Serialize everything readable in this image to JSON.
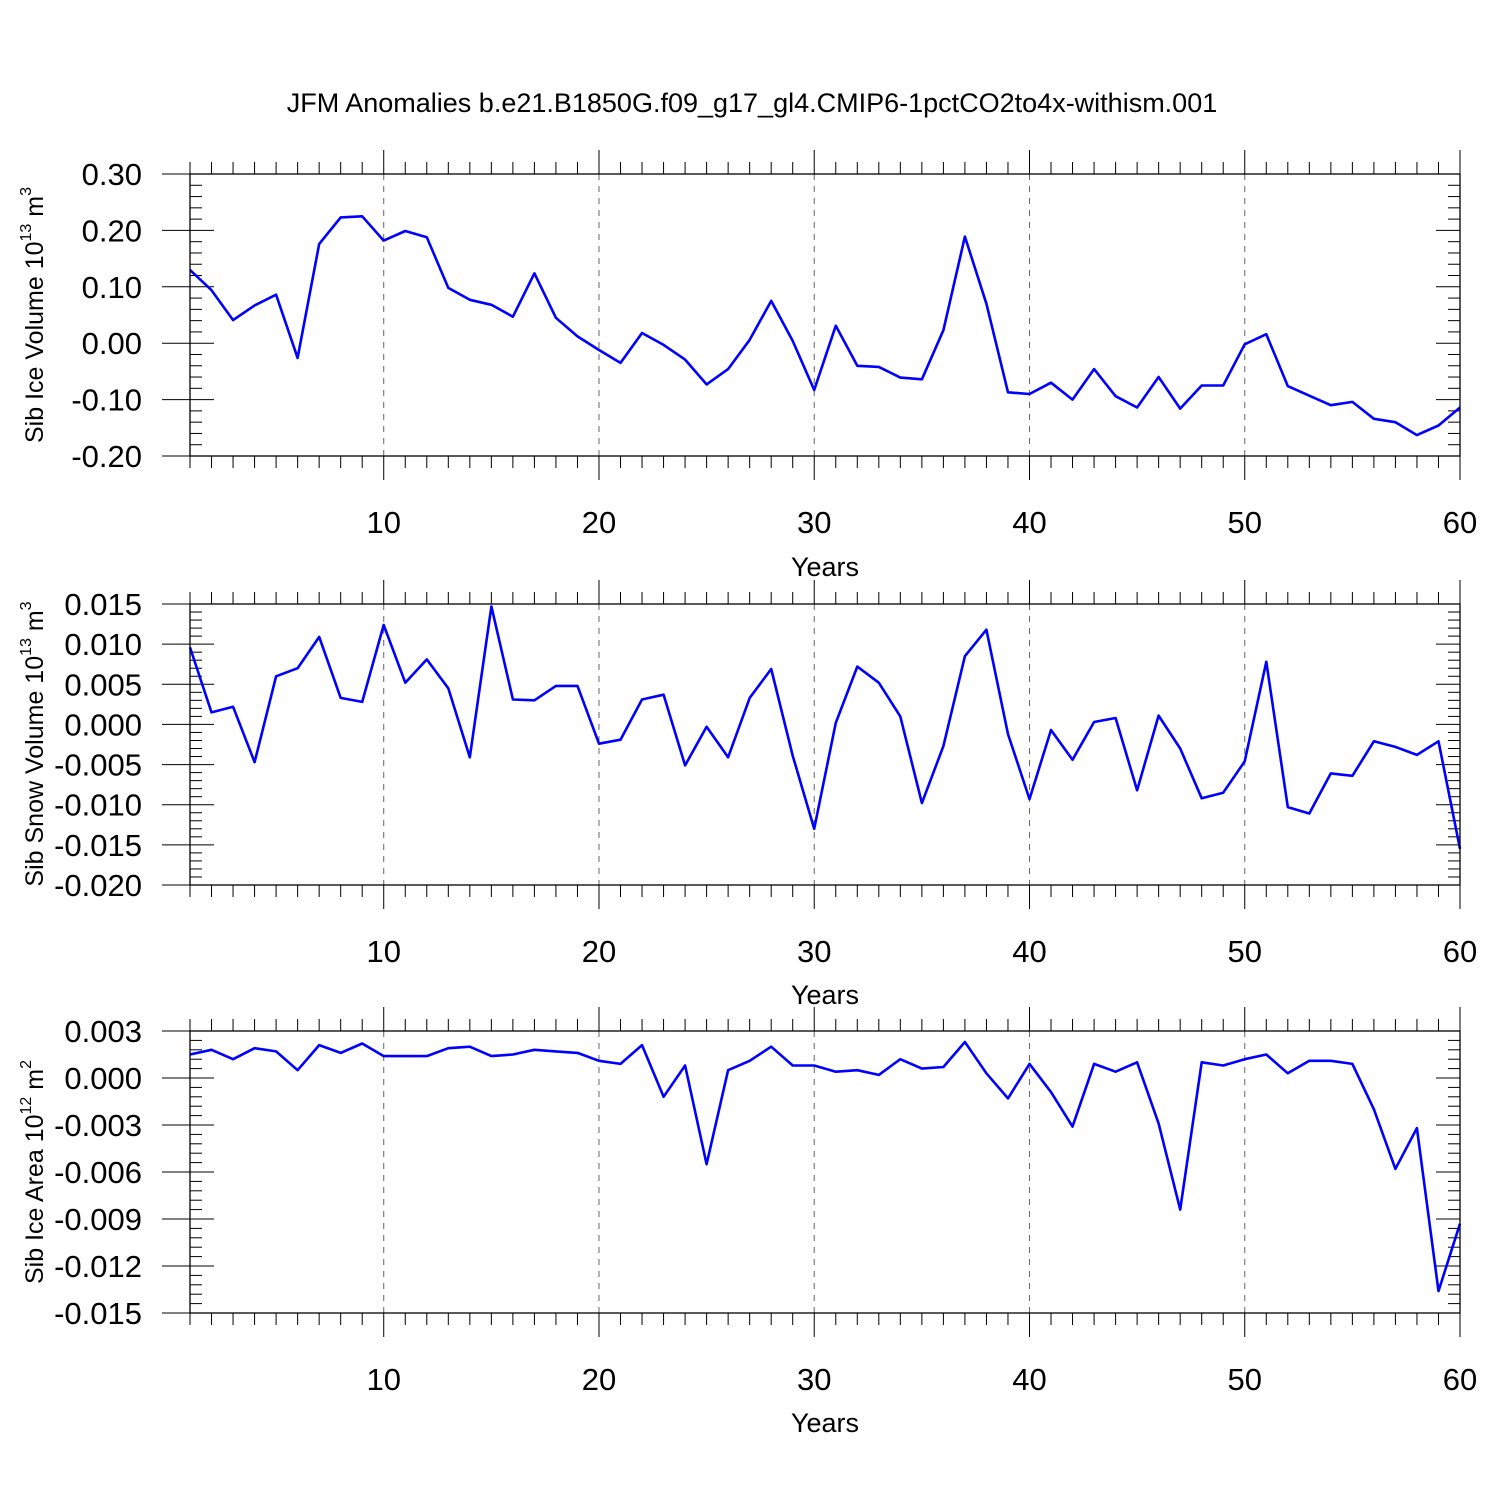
{
  "title": "JFM Anomalies b.e21.B1850G.f09_g17_gl4.CMIP6-1pctCO2to4x-withism.001",
  "line_color": "#0000ff",
  "chart_data": [
    {
      "type": "line",
      "title": "",
      "xlabel": "Years",
      "ylabel_main": "Sib Ice Volume 10",
      "ylabel_exp": "13",
      "ylabel_unit": " m",
      "ylabel_unit_exp": "3",
      "xlim": [
        1,
        60
      ],
      "ylim": [
        -0.2,
        0.3
      ],
      "xticks": [
        10,
        20,
        30,
        40,
        50,
        60
      ],
      "yticks": [
        -0.2,
        -0.1,
        0.0,
        0.1,
        0.2,
        0.3
      ],
      "ytick_labels": [
        "-0.20",
        "-0.10",
        "0.00",
        "0.10",
        "0.20",
        "0.30"
      ],
      "x": [
        1,
        2,
        3,
        4,
        5,
        6,
        7,
        8,
        9,
        10,
        11,
        12,
        13,
        14,
        15,
        16,
        17,
        18,
        19,
        20,
        21,
        22,
        23,
        24,
        25,
        26,
        27,
        28,
        29,
        30,
        31,
        32,
        33,
        34,
        35,
        36,
        37,
        38,
        39,
        40,
        41,
        42,
        43,
        44,
        45,
        46,
        47,
        48,
        49,
        50,
        51,
        52,
        53,
        54,
        55,
        56,
        57,
        58,
        59,
        60
      ],
      "series": [
        {
          "name": "Sib Ice Volume",
          "values": [
            0.13,
            0.094,
            0.041,
            0.067,
            0.086,
            -0.026,
            0.176,
            0.223,
            0.225,
            0.182,
            0.199,
            0.188,
            0.098,
            0.077,
            0.068,
            0.047,
            0.124,
            0.045,
            0.012,
            -0.012,
            -0.035,
            0.018,
            -0.003,
            -0.029,
            -0.073,
            -0.046,
            0.006,
            0.075,
            0.004,
            -0.083,
            0.031,
            -0.04,
            -0.042,
            -0.061,
            -0.064,
            0.023,
            0.189,
            0.07,
            -0.087,
            -0.09,
            -0.07,
            -0.1,
            -0.046,
            -0.094,
            -0.114,
            -0.06,
            -0.116,
            -0.075,
            -0.075,
            -0.002,
            0.016,
            -0.076,
            -0.093,
            -0.11,
            -0.104,
            -0.134,
            -0.14,
            -0.163,
            -0.146,
            -0.114
          ]
        }
      ]
    },
    {
      "type": "line",
      "title": "",
      "xlabel": "Years",
      "ylabel_main": "Sib Snow Volume 10",
      "ylabel_exp": "13",
      "ylabel_unit": " m",
      "ylabel_unit_exp": "3",
      "xlim": [
        1,
        60
      ],
      "ylim": [
        -0.02,
        0.015
      ],
      "xticks": [
        10,
        20,
        30,
        40,
        50,
        60
      ],
      "yticks": [
        -0.02,
        -0.015,
        -0.01,
        -0.005,
        0.0,
        0.005,
        0.01,
        0.015
      ],
      "ytick_labels": [
        "-0.020",
        "-0.015",
        "-0.010",
        "-0.005",
        "0.000",
        "0.005",
        "0.010",
        "0.015"
      ],
      "x": [
        1,
        2,
        3,
        4,
        5,
        6,
        7,
        8,
        9,
        10,
        11,
        12,
        13,
        14,
        15,
        16,
        17,
        18,
        19,
        20,
        21,
        22,
        23,
        24,
        25,
        26,
        27,
        28,
        29,
        30,
        31,
        32,
        33,
        34,
        35,
        36,
        37,
        38,
        39,
        40,
        41,
        42,
        43,
        44,
        45,
        46,
        47,
        48,
        49,
        50,
        51,
        52,
        53,
        54,
        55,
        56,
        57,
        58,
        59,
        60
      ],
      "series": [
        {
          "name": "Sib Snow Volume",
          "values": [
            0.0096,
            0.0015,
            0.0022,
            -0.0047,
            0.006,
            0.007,
            0.0109,
            0.0033,
            0.0028,
            0.0124,
            0.0052,
            0.0081,
            0.0045,
            -0.0041,
            0.0147,
            0.0031,
            0.003,
            0.0048,
            0.0048,
            -0.0024,
            -0.0019,
            0.0031,
            0.0037,
            -0.0051,
            -0.0003,
            -0.0041,
            0.0033,
            0.0069,
            -0.0039,
            -0.013,
            0.0002,
            0.0072,
            0.0052,
            0.001,
            -0.0098,
            -0.0027,
            0.0085,
            0.0118,
            -0.0012,
            -0.0093,
            -0.0007,
            -0.0044,
            0.0003,
            0.0008,
            -0.0082,
            0.0011,
            -0.003,
            -0.0092,
            -0.0085,
            -0.0046,
            0.0078,
            -0.0103,
            -0.0111,
            -0.0061,
            -0.0064,
            -0.0021,
            -0.0028,
            -0.0038,
            -0.0021,
            -0.0155
          ]
        }
      ]
    },
    {
      "type": "line",
      "title": "",
      "xlabel": "Years",
      "ylabel_main": "Sib Ice Area 10",
      "ylabel_exp": "12",
      "ylabel_unit": " m",
      "ylabel_unit_exp": "2",
      "xlim": [
        1,
        60
      ],
      "ylim": [
        -0.015,
        0.003
      ],
      "xticks": [
        10,
        20,
        30,
        40,
        50,
        60
      ],
      "yticks": [
        -0.015,
        -0.012,
        -0.009,
        -0.006,
        -0.003,
        0.0,
        0.003
      ],
      "ytick_labels": [
        "-0.015",
        "-0.012",
        "-0.009",
        "-0.006",
        "-0.003",
        "0.000",
        "0.003"
      ],
      "x": [
        1,
        2,
        3,
        4,
        5,
        6,
        7,
        8,
        9,
        10,
        11,
        12,
        13,
        14,
        15,
        16,
        17,
        18,
        19,
        20,
        21,
        22,
        23,
        24,
        25,
        26,
        27,
        28,
        29,
        30,
        31,
        32,
        33,
        34,
        35,
        36,
        37,
        38,
        39,
        40,
        41,
        42,
        43,
        44,
        45,
        46,
        47,
        48,
        49,
        50,
        51,
        52,
        53,
        54,
        55,
        56,
        57,
        58,
        59,
        60
      ],
      "series": [
        {
          "name": "Sib Ice Area",
          "values": [
            0.0015,
            0.0018,
            0.0012,
            0.0019,
            0.0017,
            0.0005,
            0.0021,
            0.0016,
            0.0022,
            0.0014,
            0.0014,
            0.0014,
            0.0019,
            0.002,
            0.0014,
            0.0015,
            0.0018,
            0.0017,
            0.0016,
            0.0011,
            0.0009,
            0.0021,
            -0.0012,
            0.0008,
            -0.0055,
            0.0005,
            0.0011,
            0.002,
            0.0008,
            0.0008,
            0.0004,
            0.0005,
            0.0002,
            0.0012,
            0.0006,
            0.0007,
            0.0023,
            0.0003,
            -0.0013,
            0.0009,
            -0.0009,
            -0.0031,
            0.0009,
            0.0004,
            0.001,
            -0.0029,
            -0.0084,
            0.001,
            0.0008,
            0.0012,
            0.0015,
            0.0003,
            0.0011,
            0.0011,
            0.0009,
            -0.002,
            -0.0058,
            -0.0032,
            -0.0136,
            -0.0093
          ]
        }
      ]
    }
  ]
}
